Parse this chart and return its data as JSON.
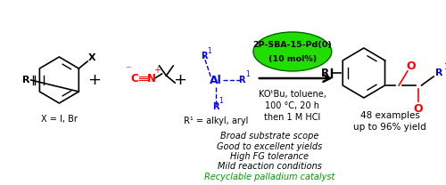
{
  "bg_color": "#ffffff",
  "catalyst_text1": "2P-SBA-15-Pd(0)",
  "catalyst_text2": "(10 mol%)",
  "conditions": [
    "KOᵗBu, toluene,",
    "100 °C, 20 h",
    "then 1 M HCl"
  ],
  "result_lines": [
    "48 examples",
    "up to 96% yield"
  ],
  "bullet_texts": [
    {
      "text": "Broad substrate scope",
      "color": "#000000"
    },
    {
      "text": "Good to excellent yields",
      "color": "#000000"
    },
    {
      "text": "High FG tolerance",
      "color": "#000000"
    },
    {
      "text": "Mild reaction conditions",
      "color": "#000000"
    },
    {
      "text": "Recyclable palladium catalyst",
      "color": "#009900"
    }
  ]
}
